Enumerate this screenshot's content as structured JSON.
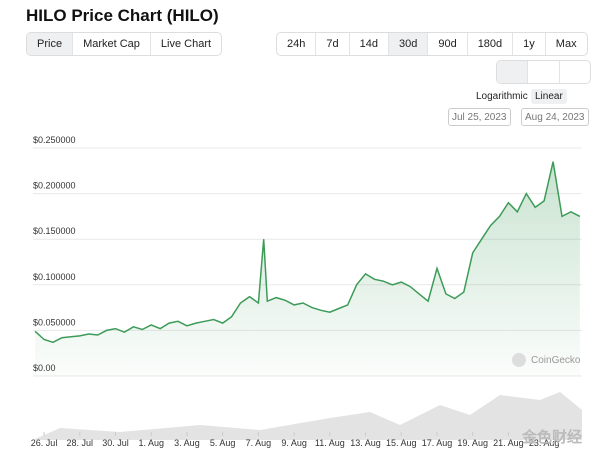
{
  "ui": {
    "title": "HILO Price Chart (HILO)",
    "tabs": [
      "Price",
      "Market Cap",
      "Live Chart"
    ],
    "ranges": [
      "24h",
      "7d",
      "14d",
      "30d",
      "90d",
      "180d",
      "1y",
      "Max"
    ],
    "scales": [
      "Logarithmic",
      "Linear"
    ],
    "date_from": "Jul 25, 2023",
    "date_to": "Aug 24, 2023",
    "watermark": "CoinGecko",
    "source_mark": "金色财经"
  },
  "chart_data": {
    "type": "line",
    "series": [
      {
        "name": "Price",
        "color": "#3d9b58",
        "x": [
          0.5,
          1,
          1.5,
          2,
          2.5,
          3,
          3.5,
          4,
          4.5,
          5,
          5.5,
          6,
          6.5,
          7,
          7.5,
          8,
          8.5,
          9,
          9.5,
          10,
          10.5,
          11,
          11.5,
          12,
          12.5,
          13,
          13.3,
          13.5,
          14,
          14.5,
          15,
          15.5,
          16,
          16.5,
          17,
          17.5,
          18,
          18.5,
          19,
          19.5,
          20,
          20.5,
          21,
          21.5,
          22,
          22.5,
          23,
          23.5,
          24,
          24.5,
          25,
          25.5,
          26,
          26.5,
          27,
          27.5,
          28,
          28.5,
          29,
          29.5,
          30,
          30.5,
          31
        ],
        "values": [
          0.049,
          0.04,
          0.037,
          0.042,
          0.043,
          0.044,
          0.046,
          0.045,
          0.05,
          0.052,
          0.048,
          0.054,
          0.051,
          0.056,
          0.052,
          0.058,
          0.06,
          0.055,
          0.058,
          0.06,
          0.062,
          0.058,
          0.065,
          0.08,
          0.087,
          0.08,
          0.15,
          0.082,
          0.086,
          0.083,
          0.078,
          0.08,
          0.075,
          0.072,
          0.07,
          0.074,
          0.078,
          0.1,
          0.112,
          0.106,
          0.104,
          0.1,
          0.103,
          0.098,
          0.09,
          0.082,
          0.118,
          0.09,
          0.085,
          0.092,
          0.135,
          0.15,
          0.165,
          0.175,
          0.19,
          0.18,
          0.2,
          0.185,
          0.192,
          0.235,
          0.175,
          0.18,
          0.175
        ]
      }
    ],
    "xlim": [
      0.38,
      31.12
    ],
    "xticks": [
      {
        "value": 1,
        "label": "26. Jul"
      },
      {
        "value": 3,
        "label": "28. Jul"
      },
      {
        "value": 5,
        "label": "30. Jul"
      },
      {
        "value": 7,
        "label": "1. Aug"
      },
      {
        "value": 9,
        "label": "3. Aug"
      },
      {
        "value": 11,
        "label": "5. Aug"
      },
      {
        "value": 13,
        "label": "7. Aug"
      },
      {
        "value": 15,
        "label": "9. Aug"
      },
      {
        "value": 17,
        "label": "11. Aug"
      },
      {
        "value": 19,
        "label": "13. Aug"
      },
      {
        "value": 21,
        "label": "15. Aug"
      },
      {
        "value": 23,
        "label": "17. Aug"
      },
      {
        "value": 25,
        "label": "19. Aug"
      },
      {
        "value": 27,
        "label": "21. Aug"
      },
      {
        "value": 29,
        "label": "23. Aug"
      }
    ],
    "ylim": [
      0,
      0.25
    ],
    "yticks": [
      {
        "value": 0,
        "label": "$0.00"
      },
      {
        "value": 0.05,
        "label": "$0.050000"
      },
      {
        "value": 0.1,
        "label": "$0.100000"
      },
      {
        "value": 0.15,
        "label": "$0.150000"
      },
      {
        "value": 0.2,
        "label": "$0.200000"
      },
      {
        "value": 0.25,
        "label": "$0.250000"
      }
    ],
    "grid": true
  }
}
